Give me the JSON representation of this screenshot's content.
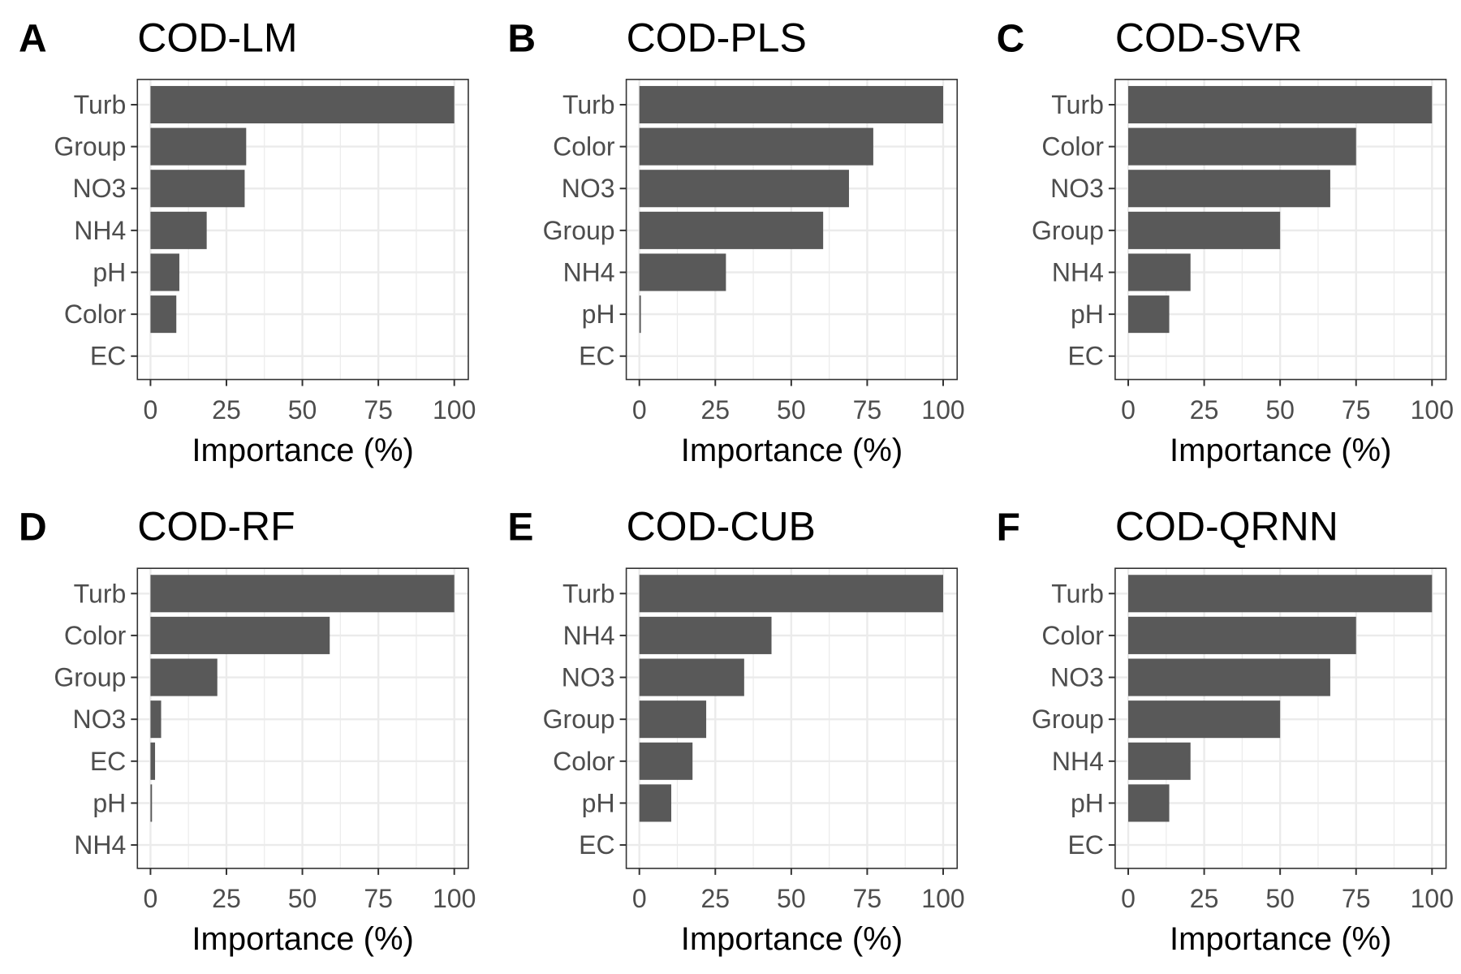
{
  "figure": {
    "bar_color": "#595959",
    "grid_color": "#ebebeb",
    "border_color": "#333333"
  },
  "chart_data": [
    {
      "type": "bar",
      "orientation": "horizontal",
      "panel": "A",
      "title": "COD-LM",
      "categories": [
        "Turb",
        "Group",
        "NO3",
        "NH4",
        "pH",
        "Color",
        "EC"
      ],
      "values": [
        100,
        31.5,
        31,
        18.5,
        9.5,
        8.5,
        0
      ],
      "xlabel": "Importance (%)",
      "xlim": [
        0,
        100
      ],
      "xticks": [
        0,
        25,
        50,
        75,
        100
      ],
      "grid": true
    },
    {
      "type": "bar",
      "orientation": "horizontal",
      "panel": "B",
      "title": "COD-PLS",
      "categories": [
        "Turb",
        "Color",
        "NO3",
        "Group",
        "NH4",
        "pH",
        "EC"
      ],
      "values": [
        100,
        77,
        69,
        60.5,
        28.5,
        0.5,
        0
      ],
      "xlabel": "Importance (%)",
      "xlim": [
        0,
        100
      ],
      "xticks": [
        0,
        25,
        50,
        75,
        100
      ],
      "grid": true
    },
    {
      "type": "bar",
      "orientation": "horizontal",
      "panel": "C",
      "title": "COD-SVR",
      "categories": [
        "Turb",
        "Color",
        "NO3",
        "Group",
        "NH4",
        "pH",
        "EC"
      ],
      "values": [
        100,
        75,
        66.5,
        50,
        20.5,
        13.5,
        0
      ],
      "xlabel": "Importance (%)",
      "xlim": [
        0,
        100
      ],
      "xticks": [
        0,
        25,
        50,
        75,
        100
      ],
      "grid": true
    },
    {
      "type": "bar",
      "orientation": "horizontal",
      "panel": "D",
      "title": "COD-RF",
      "categories": [
        "Turb",
        "Color",
        "Group",
        "NO3",
        "EC",
        "pH",
        "NH4"
      ],
      "values": [
        100,
        59,
        22,
        3.5,
        1.5,
        0.5,
        0
      ],
      "xlabel": "Importance (%)",
      "xlim": [
        0,
        100
      ],
      "xticks": [
        0,
        25,
        50,
        75,
        100
      ],
      "grid": true
    },
    {
      "type": "bar",
      "orientation": "horizontal",
      "panel": "E",
      "title": "COD-CUB",
      "categories": [
        "Turb",
        "NH4",
        "NO3",
        "Group",
        "Color",
        "pH",
        "EC"
      ],
      "values": [
        100,
        43.5,
        34.5,
        22,
        17.5,
        10.5,
        0
      ],
      "xlabel": "Importance (%)",
      "xlim": [
        0,
        100
      ],
      "xticks": [
        0,
        25,
        50,
        75,
        100
      ],
      "grid": true
    },
    {
      "type": "bar",
      "orientation": "horizontal",
      "panel": "F",
      "title": "COD-QRNN",
      "categories": [
        "Turb",
        "Color",
        "NO3",
        "Group",
        "NH4",
        "pH",
        "EC"
      ],
      "values": [
        100,
        75,
        66.5,
        50,
        20.5,
        13.5,
        0
      ],
      "xlabel": "Importance (%)",
      "xlim": [
        0,
        100
      ],
      "xticks": [
        0,
        25,
        50,
        75,
        100
      ],
      "grid": true
    }
  ]
}
